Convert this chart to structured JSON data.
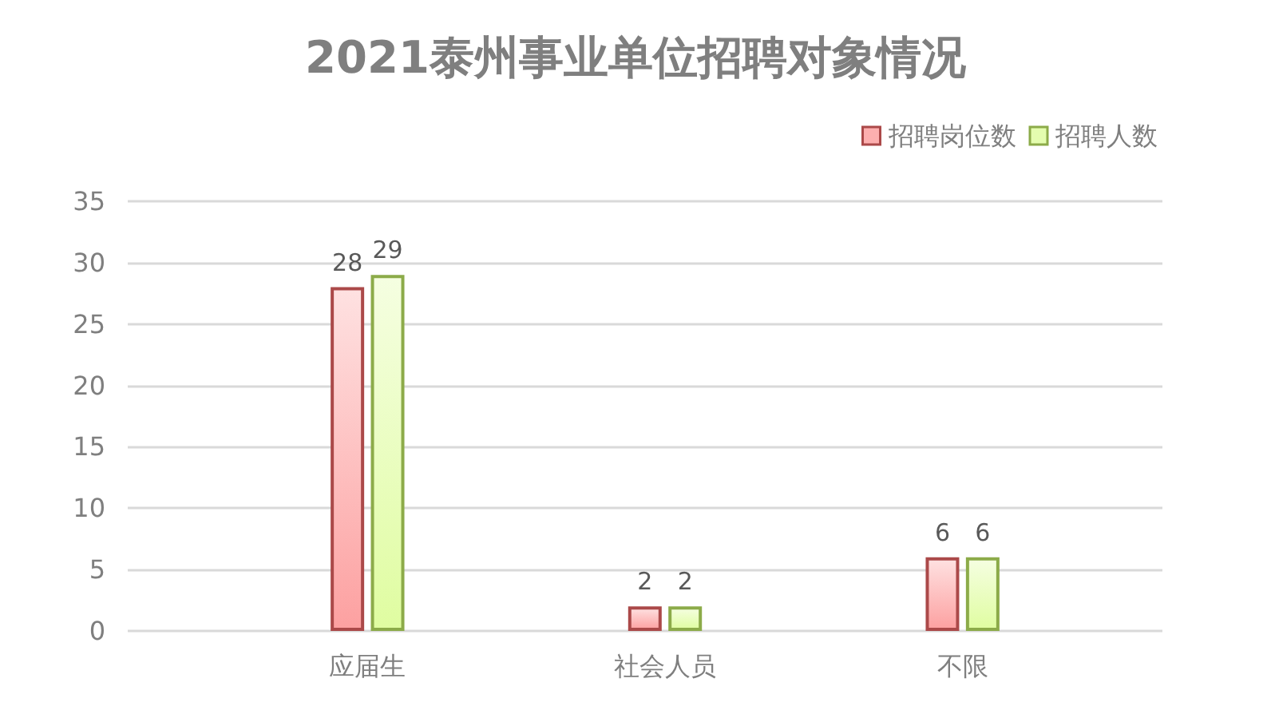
{
  "chart_data": {
    "type": "bar",
    "title": "2021泰州事业单位招聘对象情况",
    "categories": [
      "应届生",
      "社会人员",
      "不限"
    ],
    "series": [
      {
        "name": "招聘岗位数",
        "color": "#ab4949",
        "values": [
          28,
          2,
          6
        ]
      },
      {
        "name": "招聘人数",
        "color": "#8cab49",
        "values": [
          29,
          2,
          6
        ]
      }
    ],
    "ylim": [
      0,
      35
    ],
    "yticks": [
      0,
      5,
      10,
      15,
      20,
      25,
      30,
      35
    ],
    "grid": "y",
    "legend": "top right",
    "data_labels": true
  }
}
